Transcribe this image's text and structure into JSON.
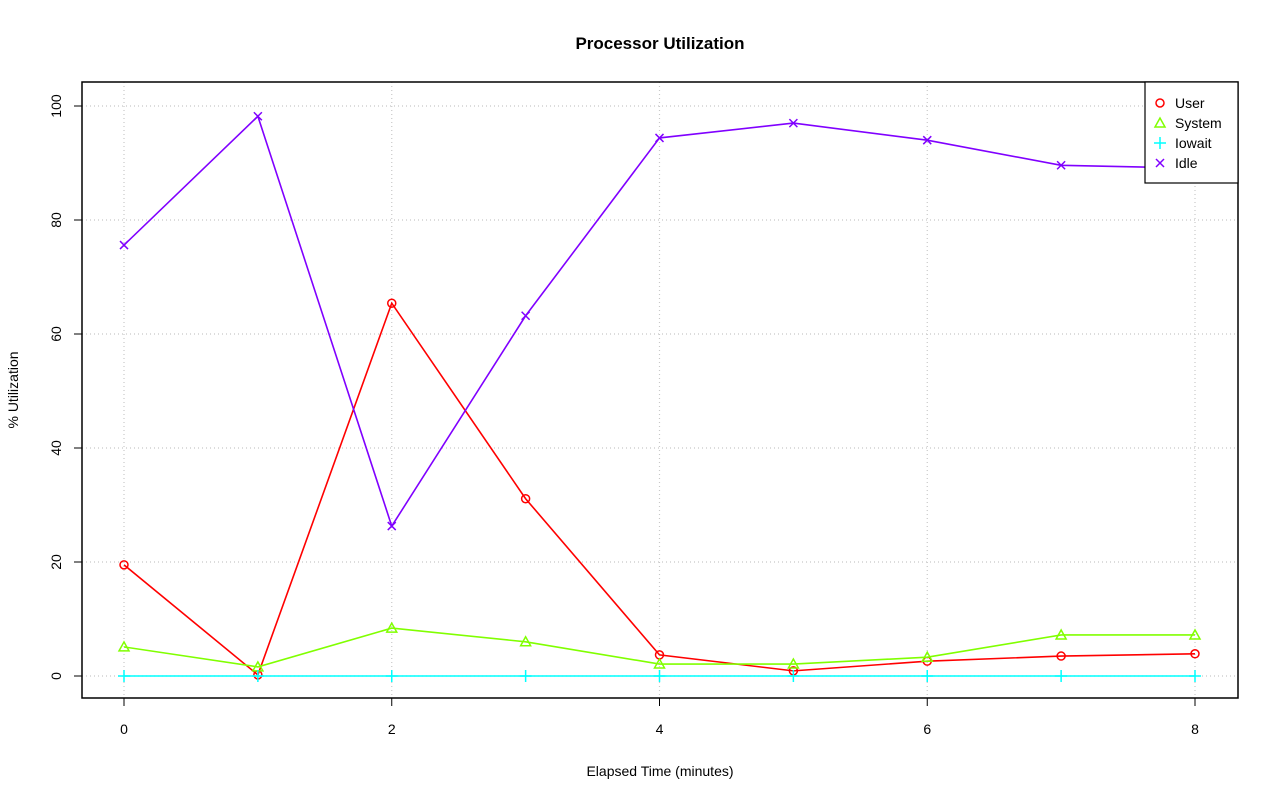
{
  "chart_data": {
    "type": "line",
    "title": "Processor Utilization",
    "xlabel": "Elapsed Time (minutes)",
    "ylabel": "% Utilization",
    "x": [
      0,
      1,
      2,
      3,
      4,
      5,
      6,
      7,
      8
    ],
    "xlim": [
      0,
      8
    ],
    "ylim": [
      0,
      100
    ],
    "xticks": [
      0,
      2,
      4,
      6,
      8
    ],
    "yticks": [
      0,
      20,
      40,
      60,
      80,
      100
    ],
    "grid": true,
    "legend_position": "top-right",
    "series": [
      {
        "name": "User",
        "color": "#ff0000",
        "marker": "circle",
        "values": [
          19.5,
          0.2,
          65.4,
          31.1,
          3.7,
          0.9,
          2.6,
          3.5,
          3.9
        ]
      },
      {
        "name": "System",
        "color": "#80ff00",
        "marker": "triangle",
        "values": [
          5.1,
          1.6,
          8.4,
          6.0,
          2.1,
          2.1,
          3.3,
          7.2,
          7.2
        ]
      },
      {
        "name": "Iowait",
        "color": "#00ffff",
        "marker": "plus",
        "values": [
          0,
          0,
          0,
          0,
          0,
          0,
          0,
          0,
          0
        ]
      },
      {
        "name": "Idle",
        "color": "#8000ff",
        "marker": "cross",
        "values": [
          75.6,
          98.2,
          26.3,
          63.2,
          94.4,
          97.0,
          94.0,
          89.6,
          89.1
        ]
      }
    ]
  }
}
